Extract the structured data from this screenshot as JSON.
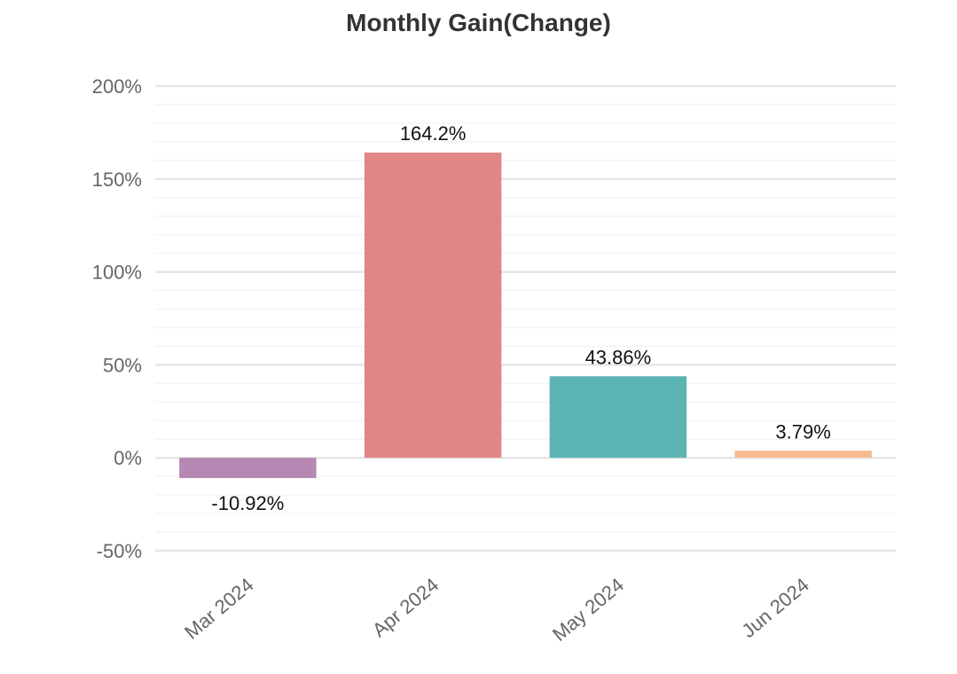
{
  "chart_data": {
    "type": "bar",
    "title": "Monthly Gain(Change)",
    "xlabel": "",
    "ylabel": "",
    "categories": [
      "Mar 2024",
      "Apr 2024",
      "May 2024",
      "Jun 2024"
    ],
    "values": [
      -10.92,
      164.2,
      43.86,
      3.79
    ],
    "value_labels": [
      "-10.92%",
      "164.2%",
      "43.86%",
      "3.79%"
    ],
    "bar_colors": [
      "#b689b5",
      "#e08785",
      "#5cb4b3",
      "#f5bb90"
    ],
    "ylim": [
      -50,
      200
    ],
    "y_ticks": [
      {
        "value": -50,
        "label": "-50%"
      },
      {
        "value": 0,
        "label": "0%"
      },
      {
        "value": 50,
        "label": "50%"
      },
      {
        "value": 100,
        "label": "100%"
      },
      {
        "value": 150,
        "label": "150%"
      },
      {
        "value": 200,
        "label": "200%"
      }
    ],
    "grid": true,
    "legend": "none"
  }
}
